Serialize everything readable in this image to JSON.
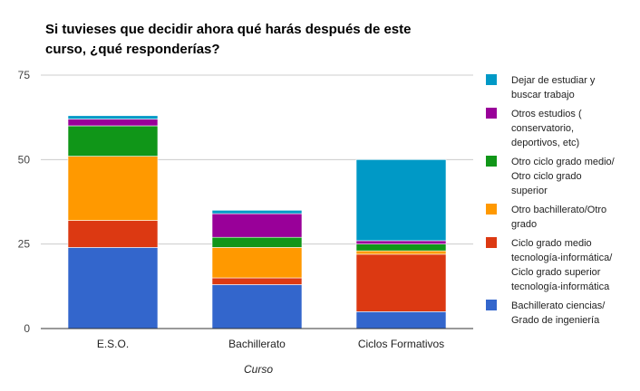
{
  "chart_data": {
    "type": "bar",
    "stacked": true,
    "title_lines": [
      "Si tuvieses que decidir ahora qué harás después de este",
      "curso, ¿qué responderías?"
    ],
    "xlabel": "Curso",
    "ylabel": "",
    "ylim": [
      0,
      75
    ],
    "yticks": [
      0,
      25,
      50,
      75
    ],
    "grid": true,
    "legend_position": "right",
    "categories": [
      "E.S.O.",
      "Bachillerato",
      "Ciclos Formativos"
    ],
    "series": [
      {
        "name": "Bachillerato ciencias/ Grado de ingeniería",
        "legend_lines": [
          "Bachillerato ciencias/",
          "Grado de ingeniería"
        ],
        "color": "#3366cc",
        "values": [
          24,
          13,
          5
        ]
      },
      {
        "name": "Ciclo grado medio tecnología-informática/ Ciclo grado superior tecnología-informática",
        "legend_lines": [
          "Ciclo grado medio",
          "tecnología-informática/",
          "Ciclo grado superior",
          "tecnología-informática"
        ],
        "color": "#dc3912",
        "values": [
          8,
          2,
          17
        ]
      },
      {
        "name": "Otro bachillerato/Otro grado",
        "legend_lines": [
          "Otro bachillerato/Otro",
          "grado"
        ],
        "color": "#ff9900",
        "values": [
          19,
          9,
          1
        ]
      },
      {
        "name": "Otro ciclo grado medio/ Otro ciclo grado superior",
        "legend_lines": [
          "Otro ciclo grado medio/",
          "Otro ciclo grado",
          "superior"
        ],
        "color": "#109618",
        "values": [
          9,
          3,
          2
        ]
      },
      {
        "name": "Otros estudios ( conservatorio, deportivos, etc)",
        "legend_lines": [
          "Otros estudios (",
          "conservatorio,",
          "deportivos, etc)"
        ],
        "color": "#990099",
        "values": [
          2,
          7,
          1
        ]
      },
      {
        "name": "Dejar de estudiar y buscar trabajo",
        "legend_lines": [
          "Dejar de estudiar y",
          "buscar trabajo"
        ],
        "color": "#0099c6",
        "values": [
          1,
          1,
          24
        ]
      }
    ]
  }
}
